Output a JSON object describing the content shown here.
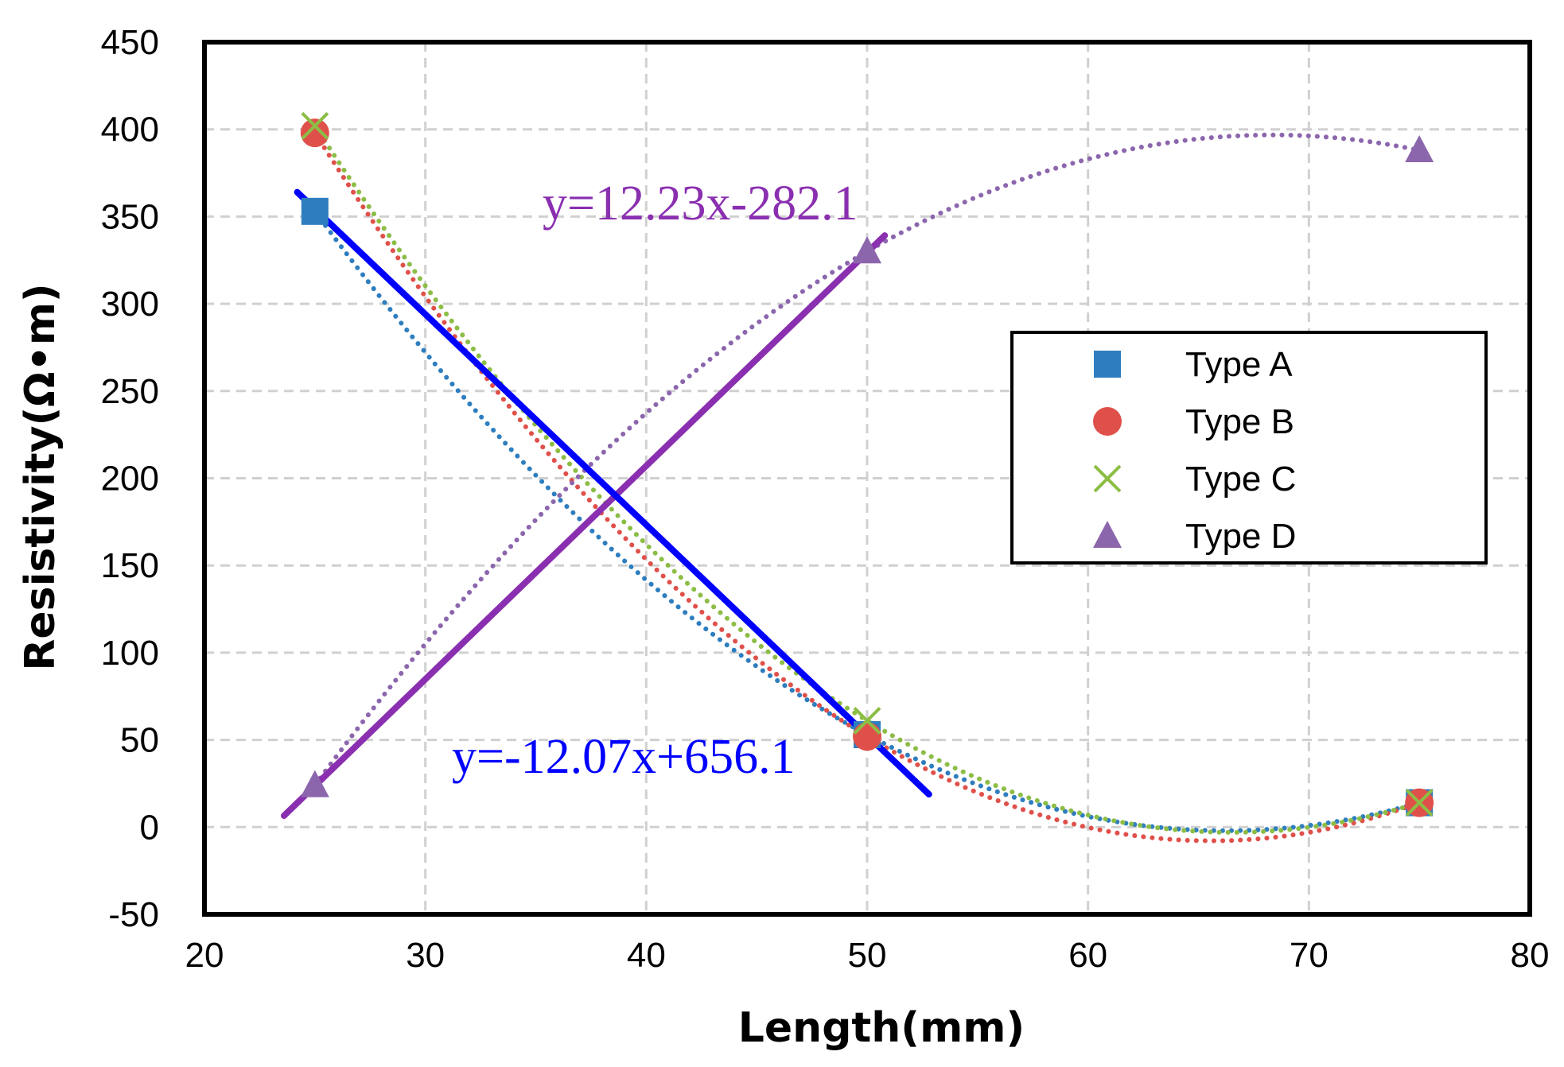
{
  "chart_data": {
    "type": "scatter",
    "xlabel": "Length(mm)",
    "ylabel": "Resistivity(Ω•m)",
    "xlim": [
      20,
      80
    ],
    "ylim": [
      -50,
      450
    ],
    "x_ticks": [
      20,
      30,
      40,
      50,
      60,
      70,
      80
    ],
    "y_ticks": [
      -50,
      0,
      50,
      100,
      150,
      200,
      250,
      300,
      350,
      400,
      450
    ],
    "grid": true,
    "legend_position": "right",
    "series": [
      {
        "name": "Type A",
        "marker": "square",
        "color": "#2e7ebf",
        "x": [
          25,
          50,
          75
        ],
        "y": [
          353,
          53,
          14
        ]
      },
      {
        "name": "Type B",
        "marker": "circle",
        "color": "#e0504a",
        "x": [
          25,
          50,
          75
        ],
        "y": [
          398,
          52,
          14
        ]
      },
      {
        "name": "Type C",
        "marker": "x",
        "color": "#8cbd45",
        "x": [
          25,
          50,
          75
        ],
        "y": [
          402,
          61,
          14
        ]
      },
      {
        "name": "Type D",
        "marker": "triangle",
        "color": "#8c66ad",
        "x": [
          25,
          50,
          75
        ],
        "y": [
          24,
          330,
          388
        ]
      }
    ],
    "trendlines": [
      {
        "label": "y=12.23x-282.1",
        "slope": 12.23,
        "intercept": -282.1,
        "x_range": [
          23.6,
          50.8
        ],
        "color": "#8a2fb0"
      },
      {
        "label": "y=-12.07x+656.1",
        "slope": -12.07,
        "intercept": 656.1,
        "x_range": [
          24.2,
          52.8
        ],
        "color": "#0000ff"
      }
    ]
  }
}
